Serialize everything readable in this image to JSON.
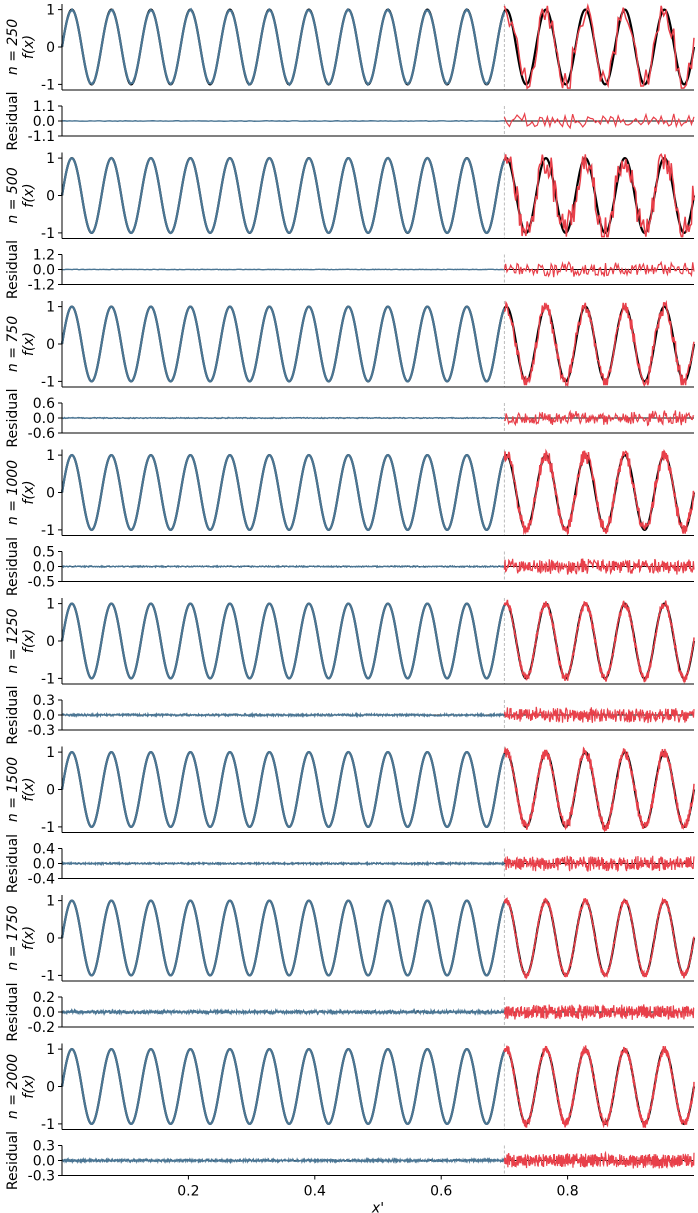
{
  "chart_data": {
    "type": "line",
    "signal": "sin(2*pi*16*x)",
    "x_range": [
      0,
      1
    ],
    "xlabel": "x'",
    "x_ticks": [
      0.2,
      0.4,
      0.6,
      0.8
    ],
    "x_tick_labels": [
      "0.2",
      "0.4",
      "0.6",
      "0.8"
    ],
    "split_x": 0.7,
    "colors": {
      "true_function": "#000000",
      "fit_train": "#4a7593",
      "fit_extrapolation": "#e8404a",
      "split_line": "#bbbbbb"
    },
    "function_ylabel": "f(x)",
    "residual_ylabel": "Residual",
    "function_y_ticks": [
      "-1",
      "0",
      "1"
    ],
    "panels": [
      {
        "row_label": "n = 250",
        "n": 250,
        "residual_ticks": [
          "1.1",
          "0.0",
          "-1.1"
        ],
        "residual_ylim": [
          -1.1,
          1.1
        ]
      },
      {
        "row_label": "n = 500",
        "n": 500,
        "residual_ticks": [
          "1.2",
          "0.0",
          "-1.2"
        ],
        "residual_ylim": [
          -1.2,
          1.2
        ]
      },
      {
        "row_label": "n = 750",
        "n": 750,
        "residual_ticks": [
          "0.6",
          "0.0",
          "-0.6"
        ],
        "residual_ylim": [
          -0.6,
          0.6
        ]
      },
      {
        "row_label": "n = 1000",
        "n": 1000,
        "residual_ticks": [
          "0.5",
          "0.0",
          "-0.5"
        ],
        "residual_ylim": [
          -0.5,
          0.5
        ]
      },
      {
        "row_label": "n = 1250",
        "n": 1250,
        "residual_ticks": [
          "0.3",
          "0.0",
          "-0.3"
        ],
        "residual_ylim": [
          -0.3,
          0.3
        ]
      },
      {
        "row_label": "n = 1500",
        "n": 1500,
        "residual_ticks": [
          "0.4",
          "0.0",
          "-0.4"
        ],
        "residual_ylim": [
          -0.4,
          0.4
        ]
      },
      {
        "row_label": "n = 1750",
        "n": 1750,
        "residual_ticks": [
          "0.2",
          "0.0",
          "-0.2"
        ],
        "residual_ylim": [
          -0.2,
          0.2
        ]
      },
      {
        "row_label": "n = 2000",
        "n": 2000,
        "residual_ticks": [
          "0.3",
          "0.0",
          "-0.3"
        ],
        "residual_ylim": [
          -0.3,
          0.3
        ]
      }
    ]
  }
}
